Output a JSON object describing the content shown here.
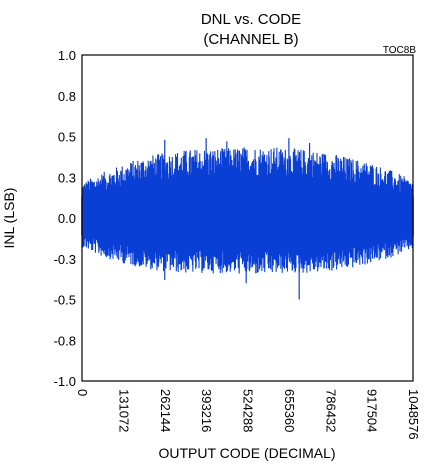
{
  "chart_data": {
    "type": "line",
    "title": "DNL vs. CODE",
    "subtitle": "(CHANNEL B)",
    "tag": "TOC8B",
    "xlabel": "OUTPUT CODE (DECIMAL)",
    "ylabel": "INL (LSB)",
    "xlim": [
      0,
      1048576
    ],
    "ylim": [
      -1.0,
      1.0
    ],
    "x_ticks": [
      "0",
      "131072",
      "262144",
      "393216",
      "524288",
      "655360",
      "786432",
      "917504",
      "1048576"
    ],
    "y_ticks": [
      "1.0",
      "0.8",
      "0.5",
      "0.3",
      "0.0",
      "-0.3",
      "-0.5",
      "-0.8",
      "-1.0"
    ],
    "grid": true,
    "line_color": "#0a3fd6",
    "series": [
      {
        "envelope_x": [
          0,
          65536,
          131072,
          196608,
          262144,
          327680,
          393216,
          458752,
          524288,
          589824,
          655360,
          720896,
          786432,
          851968,
          917504,
          983040,
          1048576
        ],
        "upper": [
          0.22,
          0.28,
          0.33,
          0.38,
          0.4,
          0.42,
          0.43,
          0.43,
          0.44,
          0.44,
          0.43,
          0.42,
          0.4,
          0.37,
          0.34,
          0.29,
          0.23
        ],
        "lower": [
          -0.18,
          -0.24,
          -0.28,
          -0.31,
          -0.33,
          -0.34,
          -0.34,
          -0.34,
          -0.35,
          -0.35,
          -0.34,
          -0.34,
          -0.33,
          -0.31,
          -0.28,
          -0.24,
          -0.19
        ],
        "spikes": [
          {
            "x": 262144,
            "y": 0.48
          },
          {
            "x": 393216,
            "y": 0.49
          },
          {
            "x": 458752,
            "y": 0.47
          },
          {
            "x": 655360,
            "y": 0.49
          },
          {
            "x": 720896,
            "y": 0.46
          },
          {
            "x": 688000,
            "y": -0.5
          },
          {
            "x": 520000,
            "y": -0.4
          },
          {
            "x": 262144,
            "y": -0.38
          }
        ]
      }
    ]
  }
}
